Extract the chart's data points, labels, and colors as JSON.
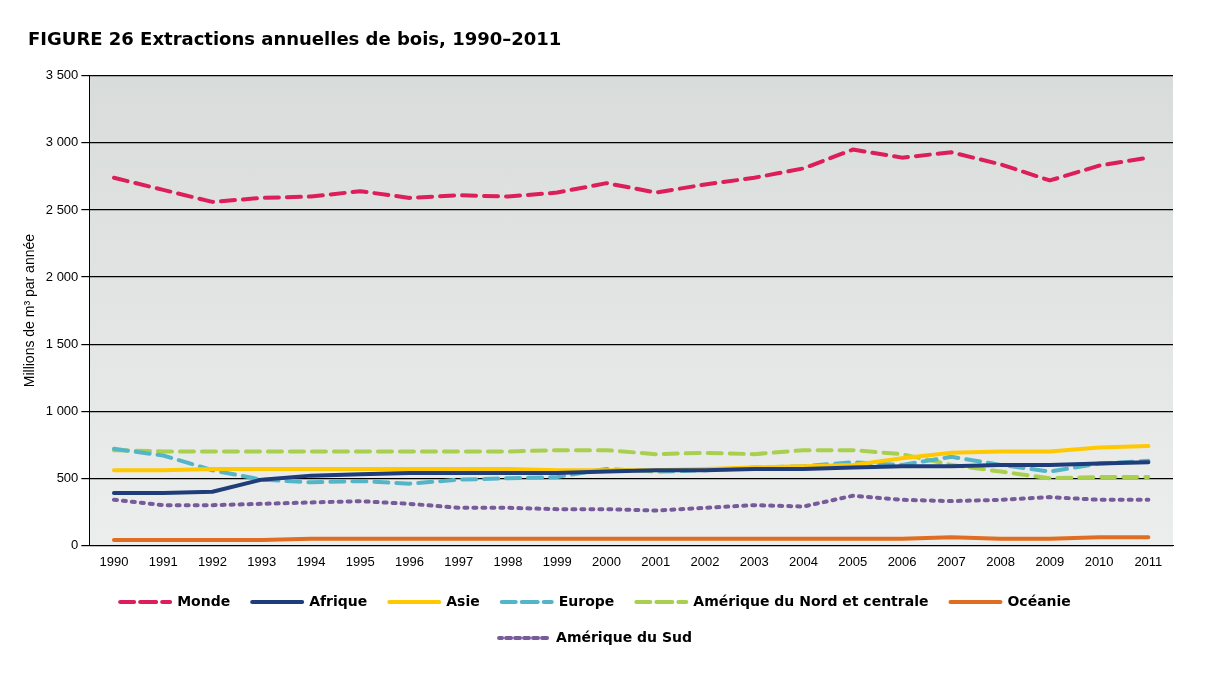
{
  "chart_data": {
    "type": "line",
    "title": "FIGURE 26 Extractions annuelles de bois, 1990–2011",
    "ylabel": "Millions de m³ par année",
    "categories": [
      "1990",
      "1991",
      "1992",
      "1993",
      "1994",
      "1995",
      "1996",
      "1997",
      "1998",
      "1999",
      "2000",
      "2001",
      "2002",
      "2003",
      "2004",
      "2005",
      "2006",
      "2007",
      "2008",
      "2009",
      "2010",
      "2011"
    ],
    "series": [
      {
        "name": "Monde",
        "color": "#dc1e5a",
        "line_style": "dashed",
        "values": [
          2740,
          2650,
          2560,
          2590,
          2600,
          2640,
          2590,
          2610,
          2600,
          2630,
          2700,
          2630,
          2690,
          2740,
          2810,
          2950,
          2890,
          2930,
          2840,
          2720,
          2830,
          2890
        ]
      },
      {
        "name": "Afrique",
        "color": "#1f3d7a",
        "line_style": "solid",
        "values": [
          390,
          390,
          400,
          490,
          520,
          530,
          540,
          540,
          540,
          540,
          550,
          560,
          560,
          570,
          570,
          580,
          590,
          590,
          600,
          600,
          610,
          620
        ]
      },
      {
        "name": "Asie",
        "color": "#ffc800",
        "line_style": "solid",
        "values": [
          560,
          560,
          570,
          570,
          570,
          570,
          570,
          570,
          570,
          560,
          560,
          560,
          570,
          580,
          590,
          600,
          650,
          690,
          700,
          700,
          730,
          740
        ]
      },
      {
        "name": "Europe",
        "color": "#55b5c8",
        "line_style": "dashed",
        "values": [
          720,
          670,
          560,
          490,
          470,
          480,
          460,
          490,
          500,
          510,
          570,
          550,
          560,
          580,
          590,
          620,
          600,
          660,
          600,
          550,
          610,
          630
        ]
      },
      {
        "name": "Amérique du Nord et centrale",
        "color": "#a8d04e",
        "line_style": "dashed",
        "values": [
          710,
          700,
          700,
          700,
          700,
          700,
          700,
          700,
          700,
          710,
          710,
          680,
          690,
          680,
          710,
          710,
          680,
          600,
          550,
          500,
          510,
          510
        ]
      },
      {
        "name": "Océanie",
        "color": "#e06e20",
        "line_style": "solid",
        "values": [
          40,
          40,
          40,
          40,
          50,
          50,
          50,
          50,
          50,
          50,
          50,
          50,
          50,
          50,
          50,
          50,
          50,
          60,
          50,
          50,
          60,
          60
        ]
      },
      {
        "name": "Amérique du Sud",
        "color": "#765a9a",
        "line_style": "dotted",
        "values": [
          340,
          300,
          300,
          310,
          320,
          330,
          310,
          280,
          280,
          270,
          270,
          260,
          280,
          300,
          290,
          370,
          340,
          330,
          340,
          360,
          340,
          340
        ]
      }
    ],
    "ylim": [
      0,
      3500
    ],
    "yticks": [
      0,
      500,
      {
        "value": 1000,
        "label": "1 000"
      },
      {
        "value": 1500,
        "label": "1 500"
      },
      {
        "value": 2000,
        "label": "2 000"
      },
      {
        "value": 2500,
        "label": "2 500"
      },
      {
        "value": 3000,
        "label": "3 000"
      },
      {
        "value": 3500,
        "label": "3 500"
      }
    ],
    "grid": "y",
    "legend": "bottom",
    "marker": "none"
  }
}
